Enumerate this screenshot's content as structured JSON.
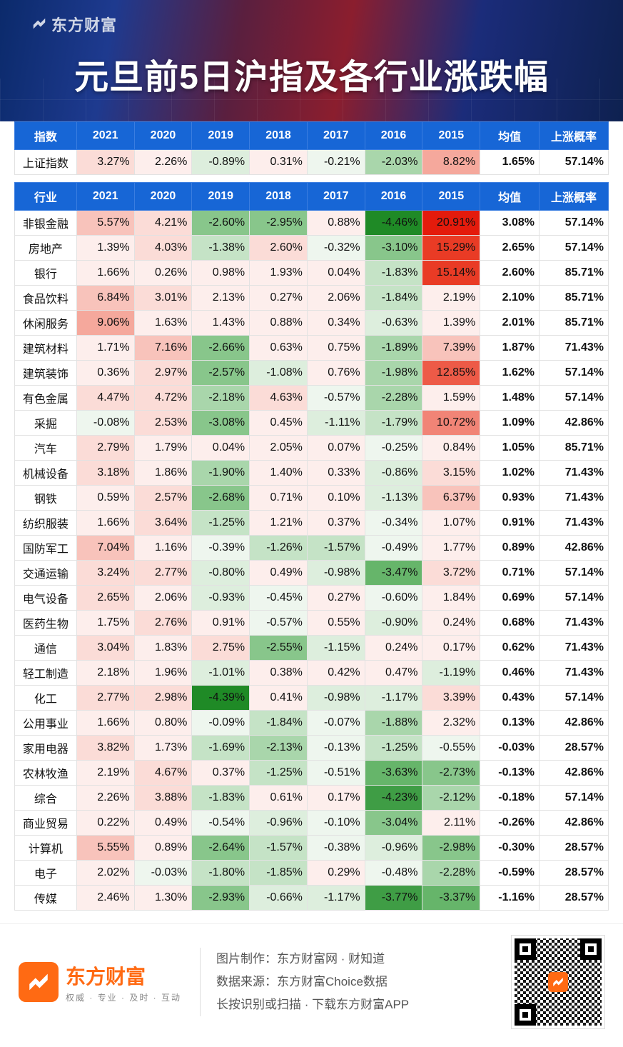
{
  "brand_top": "东方财富",
  "title": "元旦前5日沪指及各行业涨跌幅",
  "heat_colors": {
    "pos_scale": [
      "#ffffff",
      "#fdeeec",
      "#fbdcd7",
      "#f8c3bb",
      "#f5a89c",
      "#f18476",
      "#ed5a47",
      "#e93b25",
      "#e41b0c"
    ],
    "neg_scale": [
      "#ffffff",
      "#eef6ee",
      "#ddeedd",
      "#c5e3c6",
      "#a9d6ab",
      "#88c68b",
      "#66b56a",
      "#3f9d45",
      "#1f8a26"
    ]
  },
  "index_table": {
    "header_label": "指数",
    "years": [
      "2021",
      "2020",
      "2019",
      "2018",
      "2017",
      "2016",
      "2015"
    ],
    "avg_header": "均值",
    "prob_header": "上涨概率",
    "rows": [
      {
        "label": "上证指数",
        "vals": [
          3.27,
          2.26,
          -0.89,
          0.31,
          -0.21,
          -2.03,
          8.82
        ],
        "avg": "1.65%",
        "prob": "57.14%"
      }
    ]
  },
  "sector_table": {
    "header_label": "行业",
    "years": [
      "2021",
      "2020",
      "2019",
      "2018",
      "2017",
      "2016",
      "2015"
    ],
    "avg_header": "均值",
    "prob_header": "上涨概率",
    "rows": [
      {
        "label": "非银金融",
        "vals": [
          5.57,
          4.21,
          -2.6,
          -2.95,
          0.88,
          -4.46,
          20.91
        ],
        "avg": "3.08%",
        "prob": "57.14%"
      },
      {
        "label": "房地产",
        "vals": [
          1.39,
          4.03,
          -1.38,
          2.6,
          -0.32,
          -3.1,
          15.29
        ],
        "avg": "2.65%",
        "prob": "57.14%"
      },
      {
        "label": "银行",
        "vals": [
          1.66,
          0.26,
          0.98,
          1.93,
          0.04,
          -1.83,
          15.14
        ],
        "avg": "2.60%",
        "prob": "85.71%"
      },
      {
        "label": "食品饮料",
        "vals": [
          6.84,
          3.01,
          2.13,
          0.27,
          2.06,
          -1.84,
          2.19
        ],
        "avg": "2.10%",
        "prob": "85.71%"
      },
      {
        "label": "休闲服务",
        "vals": [
          9.06,
          1.63,
          1.43,
          0.88,
          0.34,
          -0.63,
          1.39
        ],
        "avg": "2.01%",
        "prob": "85.71%"
      },
      {
        "label": "建筑材料",
        "vals": [
          1.71,
          7.16,
          -2.66,
          0.63,
          0.75,
          -1.89,
          7.39
        ],
        "avg": "1.87%",
        "prob": "71.43%"
      },
      {
        "label": "建筑装饰",
        "vals": [
          0.36,
          2.97,
          -2.57,
          -1.08,
          0.76,
          -1.98,
          12.85
        ],
        "avg": "1.62%",
        "prob": "57.14%"
      },
      {
        "label": "有色金属",
        "vals": [
          4.47,
          4.72,
          -2.18,
          4.63,
          -0.57,
          -2.28,
          1.59
        ],
        "avg": "1.48%",
        "prob": "57.14%"
      },
      {
        "label": "采掘",
        "vals": [
          -0.08,
          2.53,
          -3.08,
          0.45,
          -1.11,
          -1.79,
          10.72
        ],
        "avg": "1.09%",
        "prob": "42.86%"
      },
      {
        "label": "汽车",
        "vals": [
          2.79,
          1.79,
          0.04,
          2.05,
          0.07,
          -0.25,
          0.84
        ],
        "avg": "1.05%",
        "prob": "85.71%"
      },
      {
        "label": "机械设备",
        "vals": [
          3.18,
          1.86,
          -1.9,
          1.4,
          0.33,
          -0.86,
          3.15
        ],
        "avg": "1.02%",
        "prob": "71.43%"
      },
      {
        "label": "钢铁",
        "vals": [
          0.59,
          2.57,
          -2.68,
          0.71,
          0.1,
          -1.13,
          6.37
        ],
        "avg": "0.93%",
        "prob": "71.43%"
      },
      {
        "label": "纺织服装",
        "vals": [
          1.66,
          3.64,
          -1.25,
          1.21,
          0.37,
          -0.34,
          1.07
        ],
        "avg": "0.91%",
        "prob": "71.43%"
      },
      {
        "label": "国防军工",
        "vals": [
          7.04,
          1.16,
          -0.39,
          -1.26,
          -1.57,
          -0.49,
          1.77
        ],
        "avg": "0.89%",
        "prob": "42.86%"
      },
      {
        "label": "交通运输",
        "vals": [
          3.24,
          2.77,
          -0.8,
          0.49,
          -0.98,
          -3.47,
          3.72
        ],
        "avg": "0.71%",
        "prob": "57.14%"
      },
      {
        "label": "电气设备",
        "vals": [
          2.65,
          2.06,
          -0.93,
          -0.45,
          0.27,
          -0.6,
          1.84
        ],
        "avg": "0.69%",
        "prob": "57.14%"
      },
      {
        "label": "医药生物",
        "vals": [
          1.75,
          2.76,
          0.91,
          -0.57,
          0.55,
          -0.9,
          0.24
        ],
        "avg": "0.68%",
        "prob": "71.43%"
      },
      {
        "label": "通信",
        "vals": [
          3.04,
          1.83,
          2.75,
          -2.55,
          -1.15,
          0.24,
          0.17
        ],
        "avg": "0.62%",
        "prob": "71.43%"
      },
      {
        "label": "轻工制造",
        "vals": [
          2.18,
          1.96,
          -1.01,
          0.38,
          0.42,
          0.47,
          -1.19
        ],
        "avg": "0.46%",
        "prob": "71.43%"
      },
      {
        "label": "化工",
        "vals": [
          2.77,
          2.98,
          -4.39,
          0.41,
          -0.98,
          -1.17,
          3.39
        ],
        "avg": "0.43%",
        "prob": "57.14%"
      },
      {
        "label": "公用事业",
        "vals": [
          1.66,
          0.8,
          -0.09,
          -1.84,
          -0.07,
          -1.88,
          2.32
        ],
        "avg": "0.13%",
        "prob": "42.86%"
      },
      {
        "label": "家用电器",
        "vals": [
          3.82,
          1.73,
          -1.69,
          -2.13,
          -0.13,
          -1.25,
          -0.55
        ],
        "avg": "-0.03%",
        "prob": "28.57%"
      },
      {
        "label": "农林牧渔",
        "vals": [
          2.19,
          4.67,
          0.37,
          -1.25,
          -0.51,
          -3.63,
          -2.73
        ],
        "avg": "-0.13%",
        "prob": "42.86%"
      },
      {
        "label": "综合",
        "vals": [
          2.26,
          3.88,
          -1.83,
          0.61,
          0.17,
          -4.23,
          -2.12
        ],
        "avg": "-0.18%",
        "prob": "57.14%"
      },
      {
        "label": "商业贸易",
        "vals": [
          0.22,
          0.49,
          -0.54,
          -0.96,
          -0.1,
          -3.04,
          2.11
        ],
        "avg": "-0.26%",
        "prob": "42.86%"
      },
      {
        "label": "计算机",
        "vals": [
          5.55,
          0.89,
          -2.64,
          -1.57,
          -0.38,
          -0.96,
          -2.98
        ],
        "avg": "-0.30%",
        "prob": "28.57%"
      },
      {
        "label": "电子",
        "vals": [
          2.02,
          -0.03,
          -1.8,
          -1.85,
          0.29,
          -0.48,
          -2.28
        ],
        "avg": "-0.59%",
        "prob": "28.57%"
      },
      {
        "label": "传媒",
        "vals": [
          2.46,
          1.3,
          -2.93,
          -0.66,
          -1.17,
          -3.77,
          -3.37
        ],
        "avg": "-1.16%",
        "prob": "28.57%"
      }
    ]
  },
  "footer": {
    "brand_name": "东方财富",
    "brand_sub": "权威 · 专业 · 及时 · 互动",
    "line1_label": "图片制作：",
    "line1_value": "东方财富网 · 财知道",
    "line2_label": "数据来源：",
    "line2_value": "东方财富Choice数据",
    "line3": "长按识别或扫描 · 下载东方财富APP"
  }
}
